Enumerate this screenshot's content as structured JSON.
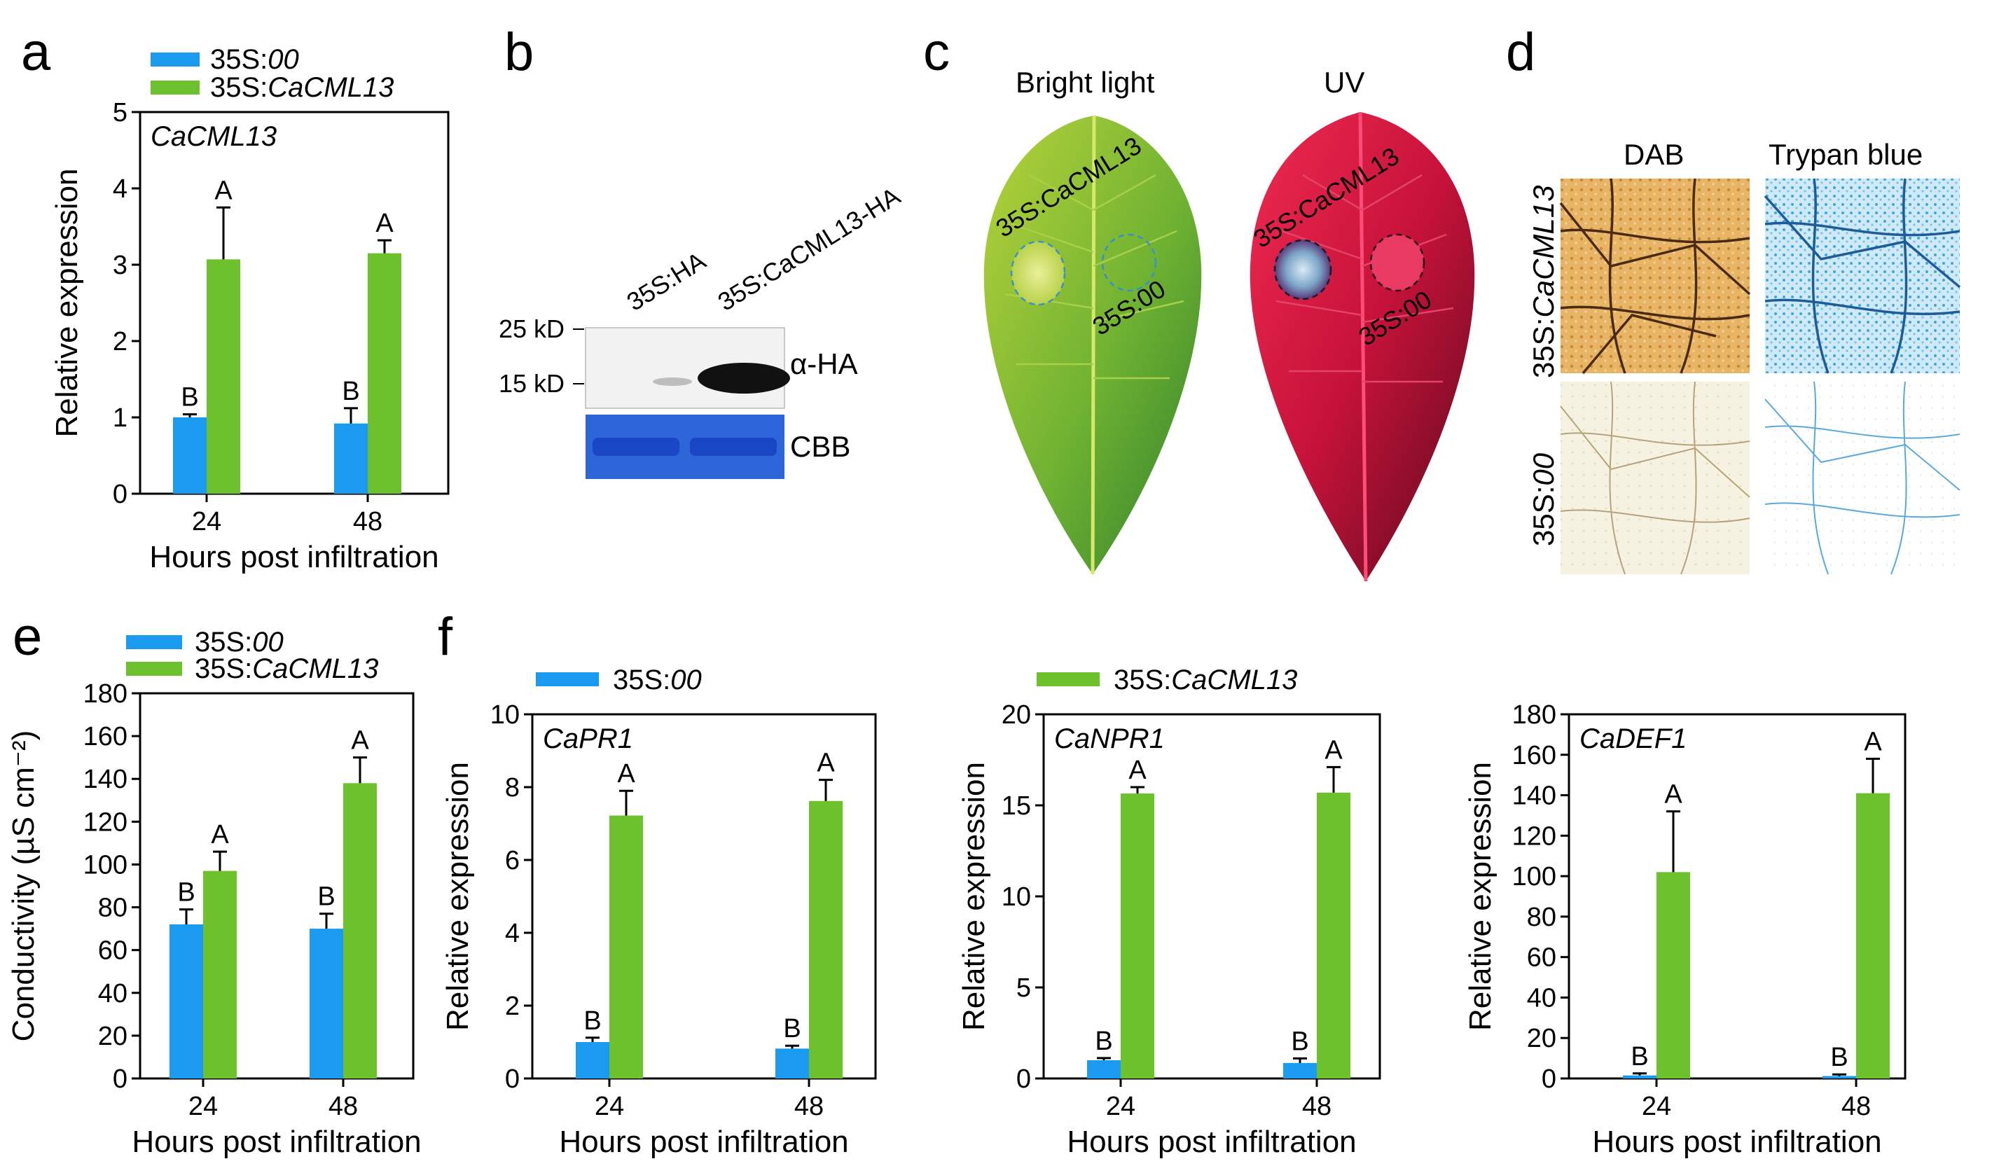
{
  "panel_labels": [
    "a",
    "b",
    "c",
    "d",
    "e",
    "f"
  ],
  "legend": {
    "control_prefix": "35S:",
    "control_suffix": "00",
    "treat_prefix": "35S:",
    "treat_suffix": "CaCML13"
  },
  "colors": {
    "control": "#1a9bf0",
    "treat": "#6cc12d"
  },
  "common": {
    "xlabel": "Hours post infiltration",
    "ylabel_expr": "Relative expression"
  },
  "chart_data": [
    {
      "id": "a",
      "type": "bar",
      "gene": "CaCML13",
      "categories": [
        "24",
        "48"
      ],
      "series": [
        {
          "name": "35S:00",
          "values": [
            1.0,
            0.92
          ],
          "errors": [
            0.04,
            0.2
          ],
          "letters": [
            "B",
            "B"
          ]
        },
        {
          "name": "35S:CaCML13",
          "values": [
            3.07,
            3.15
          ],
          "errors": [
            0.68,
            0.17
          ],
          "letters": [
            "A",
            "A"
          ]
        }
      ],
      "ylim": [
        0,
        5
      ],
      "yticks": [
        "0",
        "1",
        "2",
        "3",
        "4",
        "5"
      ],
      "xlabel": "Hours post infiltration",
      "ylabel": "Relative expression"
    },
    {
      "id": "e",
      "type": "bar",
      "gene": "",
      "categories": [
        "24",
        "48"
      ],
      "series": [
        {
          "name": "35S:00",
          "values": [
            72,
            70
          ],
          "errors": [
            7,
            7
          ],
          "letters": [
            "B",
            "B"
          ]
        },
        {
          "name": "35S:CaCML13",
          "values": [
            97,
            138
          ],
          "errors": [
            9,
            12
          ],
          "letters": [
            "A",
            "A"
          ]
        }
      ],
      "ylim": [
        0,
        180
      ],
      "yticks": [
        "0",
        "20",
        "40",
        "60",
        "80",
        "100",
        "120",
        "140",
        "160",
        "180"
      ],
      "xlabel": "Hours post infiltration",
      "ylabel": "Conductivity (µS cm⁻²)"
    },
    {
      "id": "f1",
      "type": "bar",
      "gene": "CaPR1",
      "categories": [
        "24",
        "48"
      ],
      "series": [
        {
          "name": "35S:00",
          "values": [
            1.0,
            0.82
          ],
          "errors": [
            0.12,
            0.08
          ],
          "letters": [
            "B",
            "B"
          ]
        },
        {
          "name": "35S:CaCML13",
          "values": [
            7.22,
            7.62
          ],
          "errors": [
            0.68,
            0.58
          ],
          "letters": [
            "A",
            "A"
          ]
        }
      ],
      "ylim": [
        0,
        10
      ],
      "yticks": [
        "0",
        "2",
        "4",
        "6",
        "8",
        "10"
      ],
      "xlabel": "Hours post infiltration",
      "ylabel": "Relative expression"
    },
    {
      "id": "f2",
      "type": "bar",
      "gene": "CaNPR1",
      "categories": [
        "24",
        "48"
      ],
      "series": [
        {
          "name": "35S:00",
          "values": [
            1.0,
            0.85
          ],
          "errors": [
            0.12,
            0.25
          ],
          "letters": [
            "B",
            "B"
          ]
        },
        {
          "name": "35S:CaCML13",
          "values": [
            15.65,
            15.7
          ],
          "errors": [
            0.35,
            1.4
          ],
          "letters": [
            "A",
            "A"
          ]
        }
      ],
      "ylim": [
        0,
        20
      ],
      "yticks": [
        "0",
        "5",
        "10",
        "15",
        "20"
      ],
      "xlabel": "Hours post infiltration",
      "ylabel": "Relative expression"
    },
    {
      "id": "f3",
      "type": "bar",
      "gene": "CaDEF1",
      "categories": [
        "24",
        "48"
      ],
      "series": [
        {
          "name": "35S:00",
          "values": [
            1.5,
            1.2
          ],
          "errors": [
            1.0,
            0.8
          ],
          "letters": [
            "B",
            "B"
          ]
        },
        {
          "name": "35S:CaCML13",
          "values": [
            102,
            141
          ],
          "errors": [
            30,
            17
          ],
          "letters": [
            "A",
            "A"
          ]
        }
      ],
      "ylim": [
        0,
        180
      ],
      "yticks": [
        "0",
        "20",
        "40",
        "60",
        "80",
        "100",
        "120",
        "140",
        "160",
        "180"
      ],
      "xlabel": "Hours post infiltration",
      "ylabel": "Relative expression"
    }
  ],
  "western": {
    "lanes": [
      "35S:HA",
      "35S:CaCML13-HA"
    ],
    "markers": [
      "25 kD",
      "15 kD"
    ],
    "antibody": "α-HA",
    "loading": "CBB"
  },
  "leaf": {
    "titles": [
      "Bright light",
      "UV"
    ],
    "spot_treat": "35S:CaCML13",
    "spot_control": "35S:00"
  },
  "stain": {
    "columns": [
      "DAB",
      "Trypan blue"
    ],
    "row_treat": "35S:CaCML13",
    "row_control": "35S:00"
  }
}
